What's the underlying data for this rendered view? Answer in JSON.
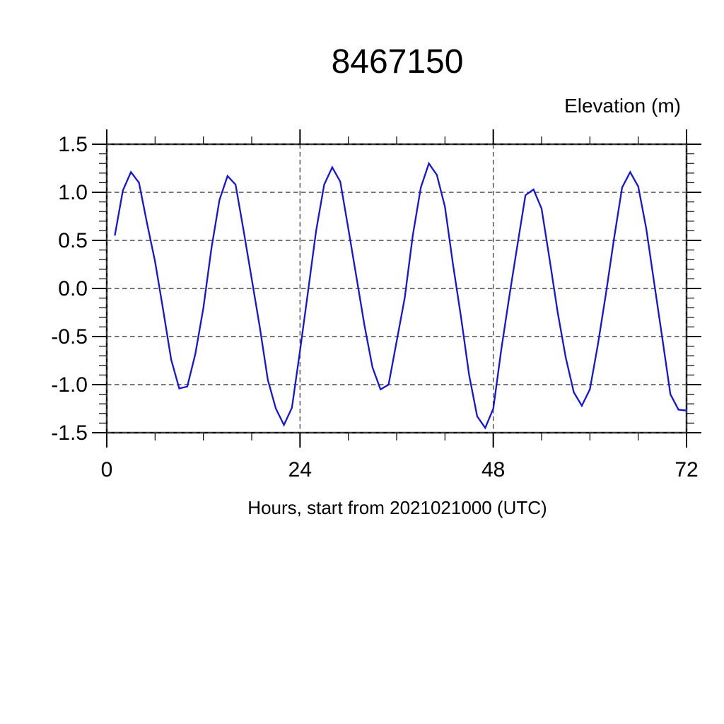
{
  "page": {
    "background": "#ffffff"
  },
  "chart_data": {
    "type": "line",
    "title": "8467150",
    "ylabel": "Elevation (m)",
    "xlabel": "Hours, start from 2021021000 (UTC)",
    "xlim": [
      0,
      72
    ],
    "ylim": [
      -1.5,
      1.5
    ],
    "xticks_major": [
      0,
      24,
      48,
      72
    ],
    "xtick_labels": [
      "0",
      "24",
      "48",
      "72"
    ],
    "x_major_step": 24,
    "x_minor_step": 6,
    "yticks_major": [
      -1.5,
      -1.0,
      -0.5,
      0.0,
      0.5,
      1.0,
      1.5
    ],
    "ytick_labels": [
      "-1.5",
      "-1.0",
      "-0.5",
      "0.0",
      "0.5",
      "1.0",
      "1.5"
    ],
    "y_major_step": 0.5,
    "y_minor_step": 0.1,
    "grid": {
      "style": "dashed",
      "horizontal": "at_major_yticks",
      "vertical": "at_major_xticks"
    },
    "legend": "none",
    "series": [
      {
        "name": "elevation",
        "color": "#1414dc",
        "x": [
          1,
          2,
          3,
          4,
          5,
          6,
          7,
          8,
          9,
          10,
          11,
          12,
          13,
          14,
          15,
          16,
          17,
          18,
          19,
          20,
          21,
          22,
          23,
          24,
          25,
          26,
          27,
          28,
          29,
          30,
          31,
          32,
          33,
          34,
          35,
          36,
          37,
          38,
          39,
          40,
          41,
          42,
          43,
          44,
          45,
          46,
          47,
          48,
          49,
          50,
          51,
          52,
          53,
          54,
          55,
          56,
          57,
          58,
          59,
          60,
          61,
          62,
          63,
          64,
          65,
          66,
          67,
          68,
          69,
          70,
          71,
          72
        ],
        "y": [
          0.55,
          1.02,
          1.21,
          1.1,
          0.68,
          0.28,
          -0.22,
          -0.74,
          -1.04,
          -1.02,
          -0.68,
          -0.2,
          0.42,
          0.92,
          1.17,
          1.08,
          0.6,
          0.1,
          -0.4,
          -0.95,
          -1.25,
          -1.42,
          -1.24,
          -0.65,
          -0.03,
          0.6,
          1.08,
          1.26,
          1.11,
          0.62,
          0.12,
          -0.38,
          -0.82,
          -1.05,
          -1.0,
          -0.55,
          -0.1,
          0.55,
          1.05,
          1.3,
          1.18,
          0.85,
          0.25,
          -0.3,
          -0.9,
          -1.33,
          -1.45,
          -1.25,
          -0.63,
          -0.08,
          0.45,
          0.97,
          1.03,
          0.83,
          0.3,
          -0.25,
          -0.72,
          -1.08,
          -1.22,
          -1.05,
          -0.58,
          -0.05,
          0.52,
          1.05,
          1.21,
          1.06,
          0.62,
          0.05,
          -0.52,
          -1.1,
          -1.26,
          -1.27
        ]
      }
    ]
  }
}
